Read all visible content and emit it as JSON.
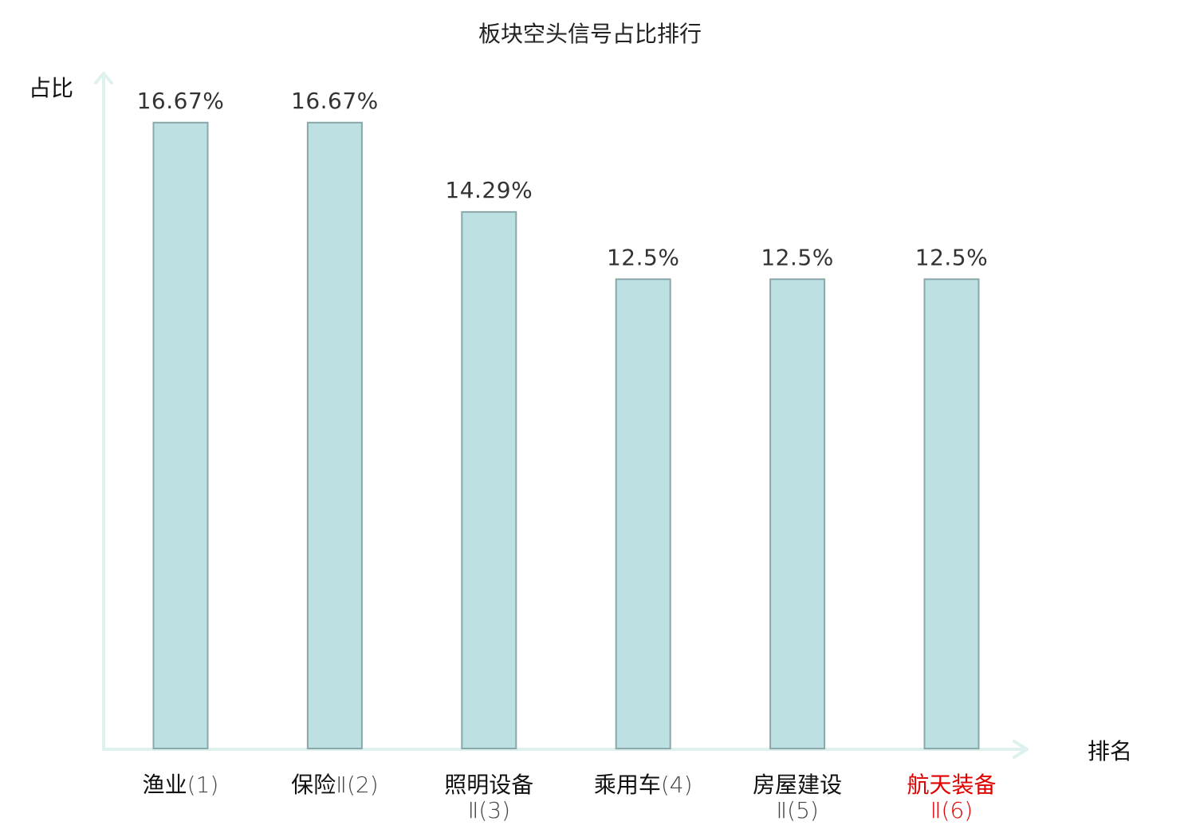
{
  "chart_data": {
    "type": "bar",
    "title": "板块空头信号占比排行",
    "ylabel": "占比",
    "xlabel": "排名",
    "ylim": [
      0,
      18
    ],
    "grid": false,
    "categories": [
      {
        "name": "渔业",
        "rank": "(1)",
        "highlight": false
      },
      {
        "name": "保险",
        "rank": "Ⅱ(2)",
        "highlight": false
      },
      {
        "name": "照明设备",
        "rank": "Ⅱ(3)",
        "highlight": false
      },
      {
        "name": "乘用车",
        "rank": "(4)",
        "highlight": false
      },
      {
        "name": "房屋建设",
        "rank": "Ⅱ(5)",
        "highlight": false
      },
      {
        "name": "航天装备",
        "rank": "Ⅱ(6)",
        "highlight": true
      }
    ],
    "values": [
      16.67,
      16.67,
      14.29,
      12.5,
      12.5,
      12.5
    ],
    "value_labels": [
      "16.67%",
      "16.67%",
      "14.29%",
      "12.5%",
      "12.5%",
      "12.5%"
    ],
    "colors": {
      "bar_fill": "#bde0e3",
      "bar_stroke": "#8aa7a9",
      "axis": "#dff1ee",
      "highlight": "#e00000"
    }
  }
}
